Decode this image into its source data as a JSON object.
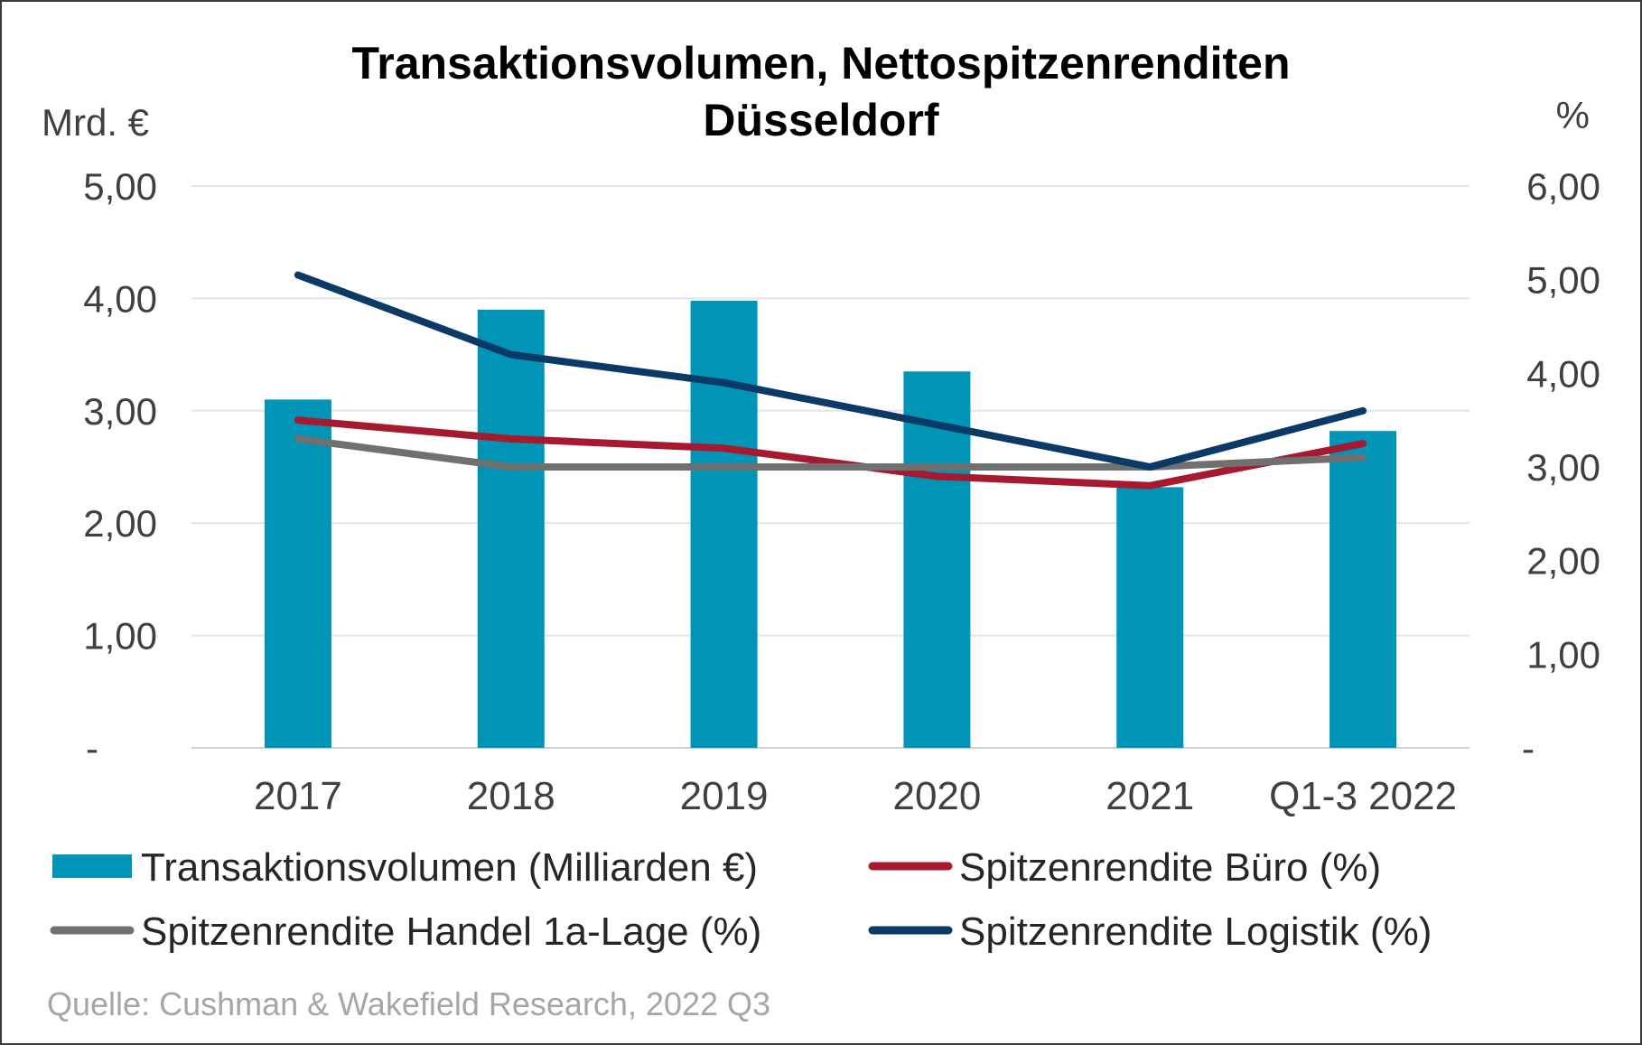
{
  "chart_data": {
    "type": "bar",
    "title": "Transaktionsvolumen, Nettospitzenrenditen",
    "subtitle": "Düsseldorf",
    "ylabel_left": "Mrd. €",
    "ylabel_right": "%",
    "categories": [
      "2017",
      "2018",
      "2019",
      "2020",
      "2021",
      "Q1-3 2022"
    ],
    "left_axis": {
      "min": 0,
      "max": 5,
      "ticks": [
        {
          "value": 0,
          "label": "-"
        },
        {
          "value": 1,
          "label": "1,00"
        },
        {
          "value": 2,
          "label": "2,00"
        },
        {
          "value": 3,
          "label": "3,00"
        },
        {
          "value": 4,
          "label": "4,00"
        },
        {
          "value": 5,
          "label": "5,00"
        }
      ]
    },
    "right_axis": {
      "min": 0,
      "max": 6,
      "ticks": [
        {
          "value": 0,
          "label": "-"
        },
        {
          "value": 1,
          "label": "1,00"
        },
        {
          "value": 2,
          "label": "2,00"
        },
        {
          "value": 3,
          "label": "3,00"
        },
        {
          "value": 4,
          "label": "4,00"
        },
        {
          "value": 5,
          "label": "5,00"
        },
        {
          "value": 6,
          "label": "6,00"
        }
      ]
    },
    "grid": true,
    "legend_position": "bottom",
    "series": [
      {
        "name": "Transaktionsvolumen (Milliarden €)",
        "kind": "bar",
        "axis": "left",
        "color": "#0095b6",
        "values": [
          3.1,
          3.9,
          3.98,
          3.35,
          2.32,
          2.82
        ]
      },
      {
        "name": "Spitzenrendite Büro (%)",
        "kind": "line",
        "axis": "right",
        "color": "#a6192e",
        "values": [
          3.5,
          3.3,
          3.2,
          2.9,
          2.8,
          3.25
        ]
      },
      {
        "name": "Spitzenrendite Handel 1a-Lage (%)",
        "kind": "line",
        "axis": "right",
        "color": "#707070",
        "values": [
          3.3,
          3.0,
          3.0,
          3.0,
          3.0,
          3.1
        ]
      },
      {
        "name": "Spitzenrendite Logistik (%)",
        "kind": "line",
        "axis": "right",
        "color": "#0b3a66",
        "values": [
          5.05,
          4.2,
          3.9,
          3.45,
          3.0,
          3.6
        ]
      }
    ],
    "source": "Quelle: Cushman & Wakefield Research, 2022 Q3"
  }
}
